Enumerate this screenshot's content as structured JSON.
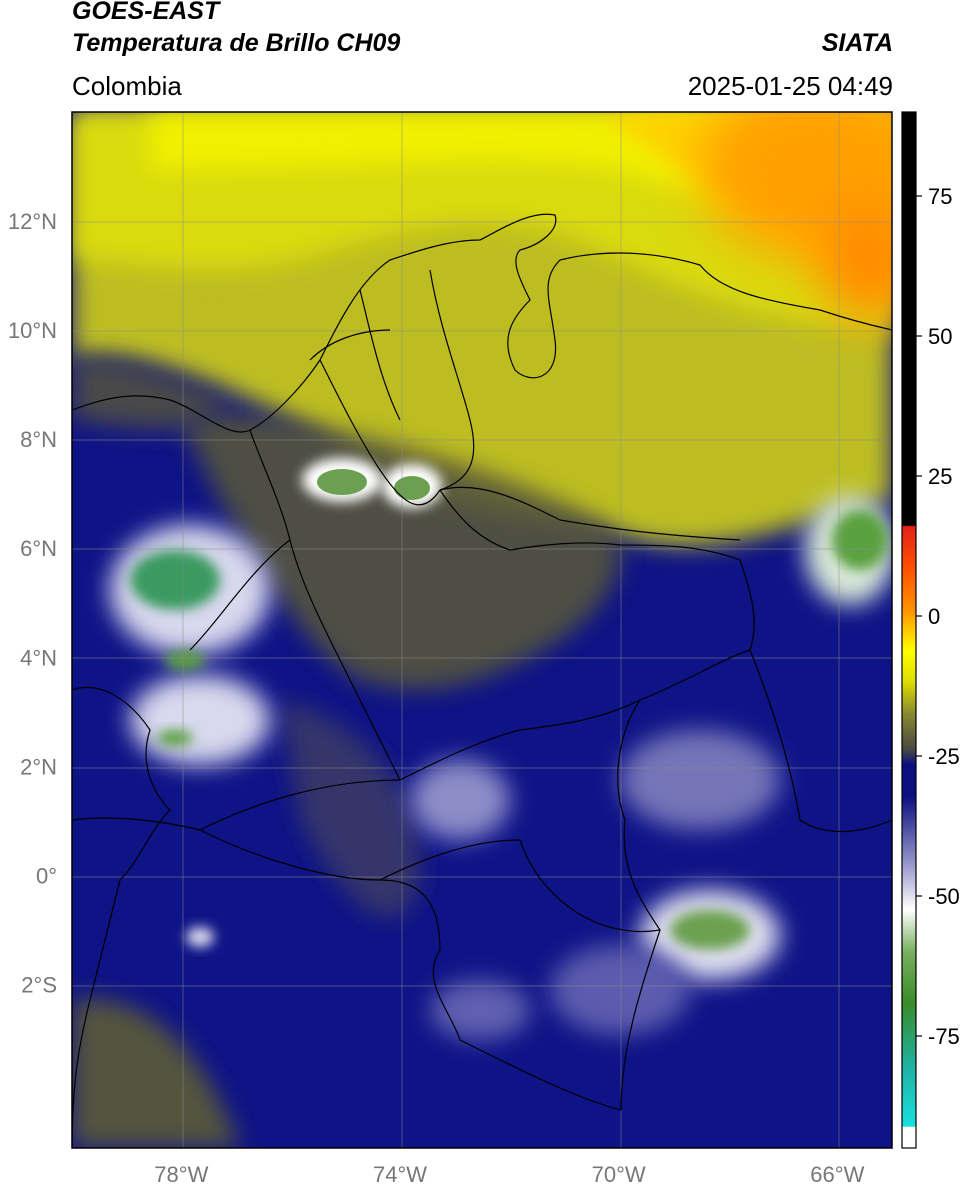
{
  "header": {
    "satellite": "GOES-EAST",
    "product": "Temperatura de Brillo CH09",
    "organization": "SIATA",
    "region": "Colombia",
    "datetime": "2025-01-25 04:49"
  },
  "map": {
    "lon_labels": [
      "78°W",
      "74°W",
      "70°W",
      "66°W"
    ],
    "lat_labels": [
      "12°N",
      "10°N",
      "8°N",
      "6°N",
      "4°N",
      "2°N",
      "0°",
      "2°S"
    ],
    "extent": {
      "lon_min": -80,
      "lon_max": -65,
      "lat_min": -5,
      "lat_max": 14
    }
  },
  "colorbar": {
    "ticks": [
      "75",
      "50",
      "25",
      "0",
      "-25",
      "-50",
      "-75"
    ],
    "range": [
      -95,
      90
    ],
    "colors": {
      "black": "#000000",
      "red": "#e0221a",
      "orange": "#ff9000",
      "yellow": "#ffff00",
      "olive": "#6e6e30",
      "navy": "#0b0f80",
      "white": "#ffffff",
      "green": "#3a8c2a",
      "cyan": "#18e0e0"
    }
  }
}
